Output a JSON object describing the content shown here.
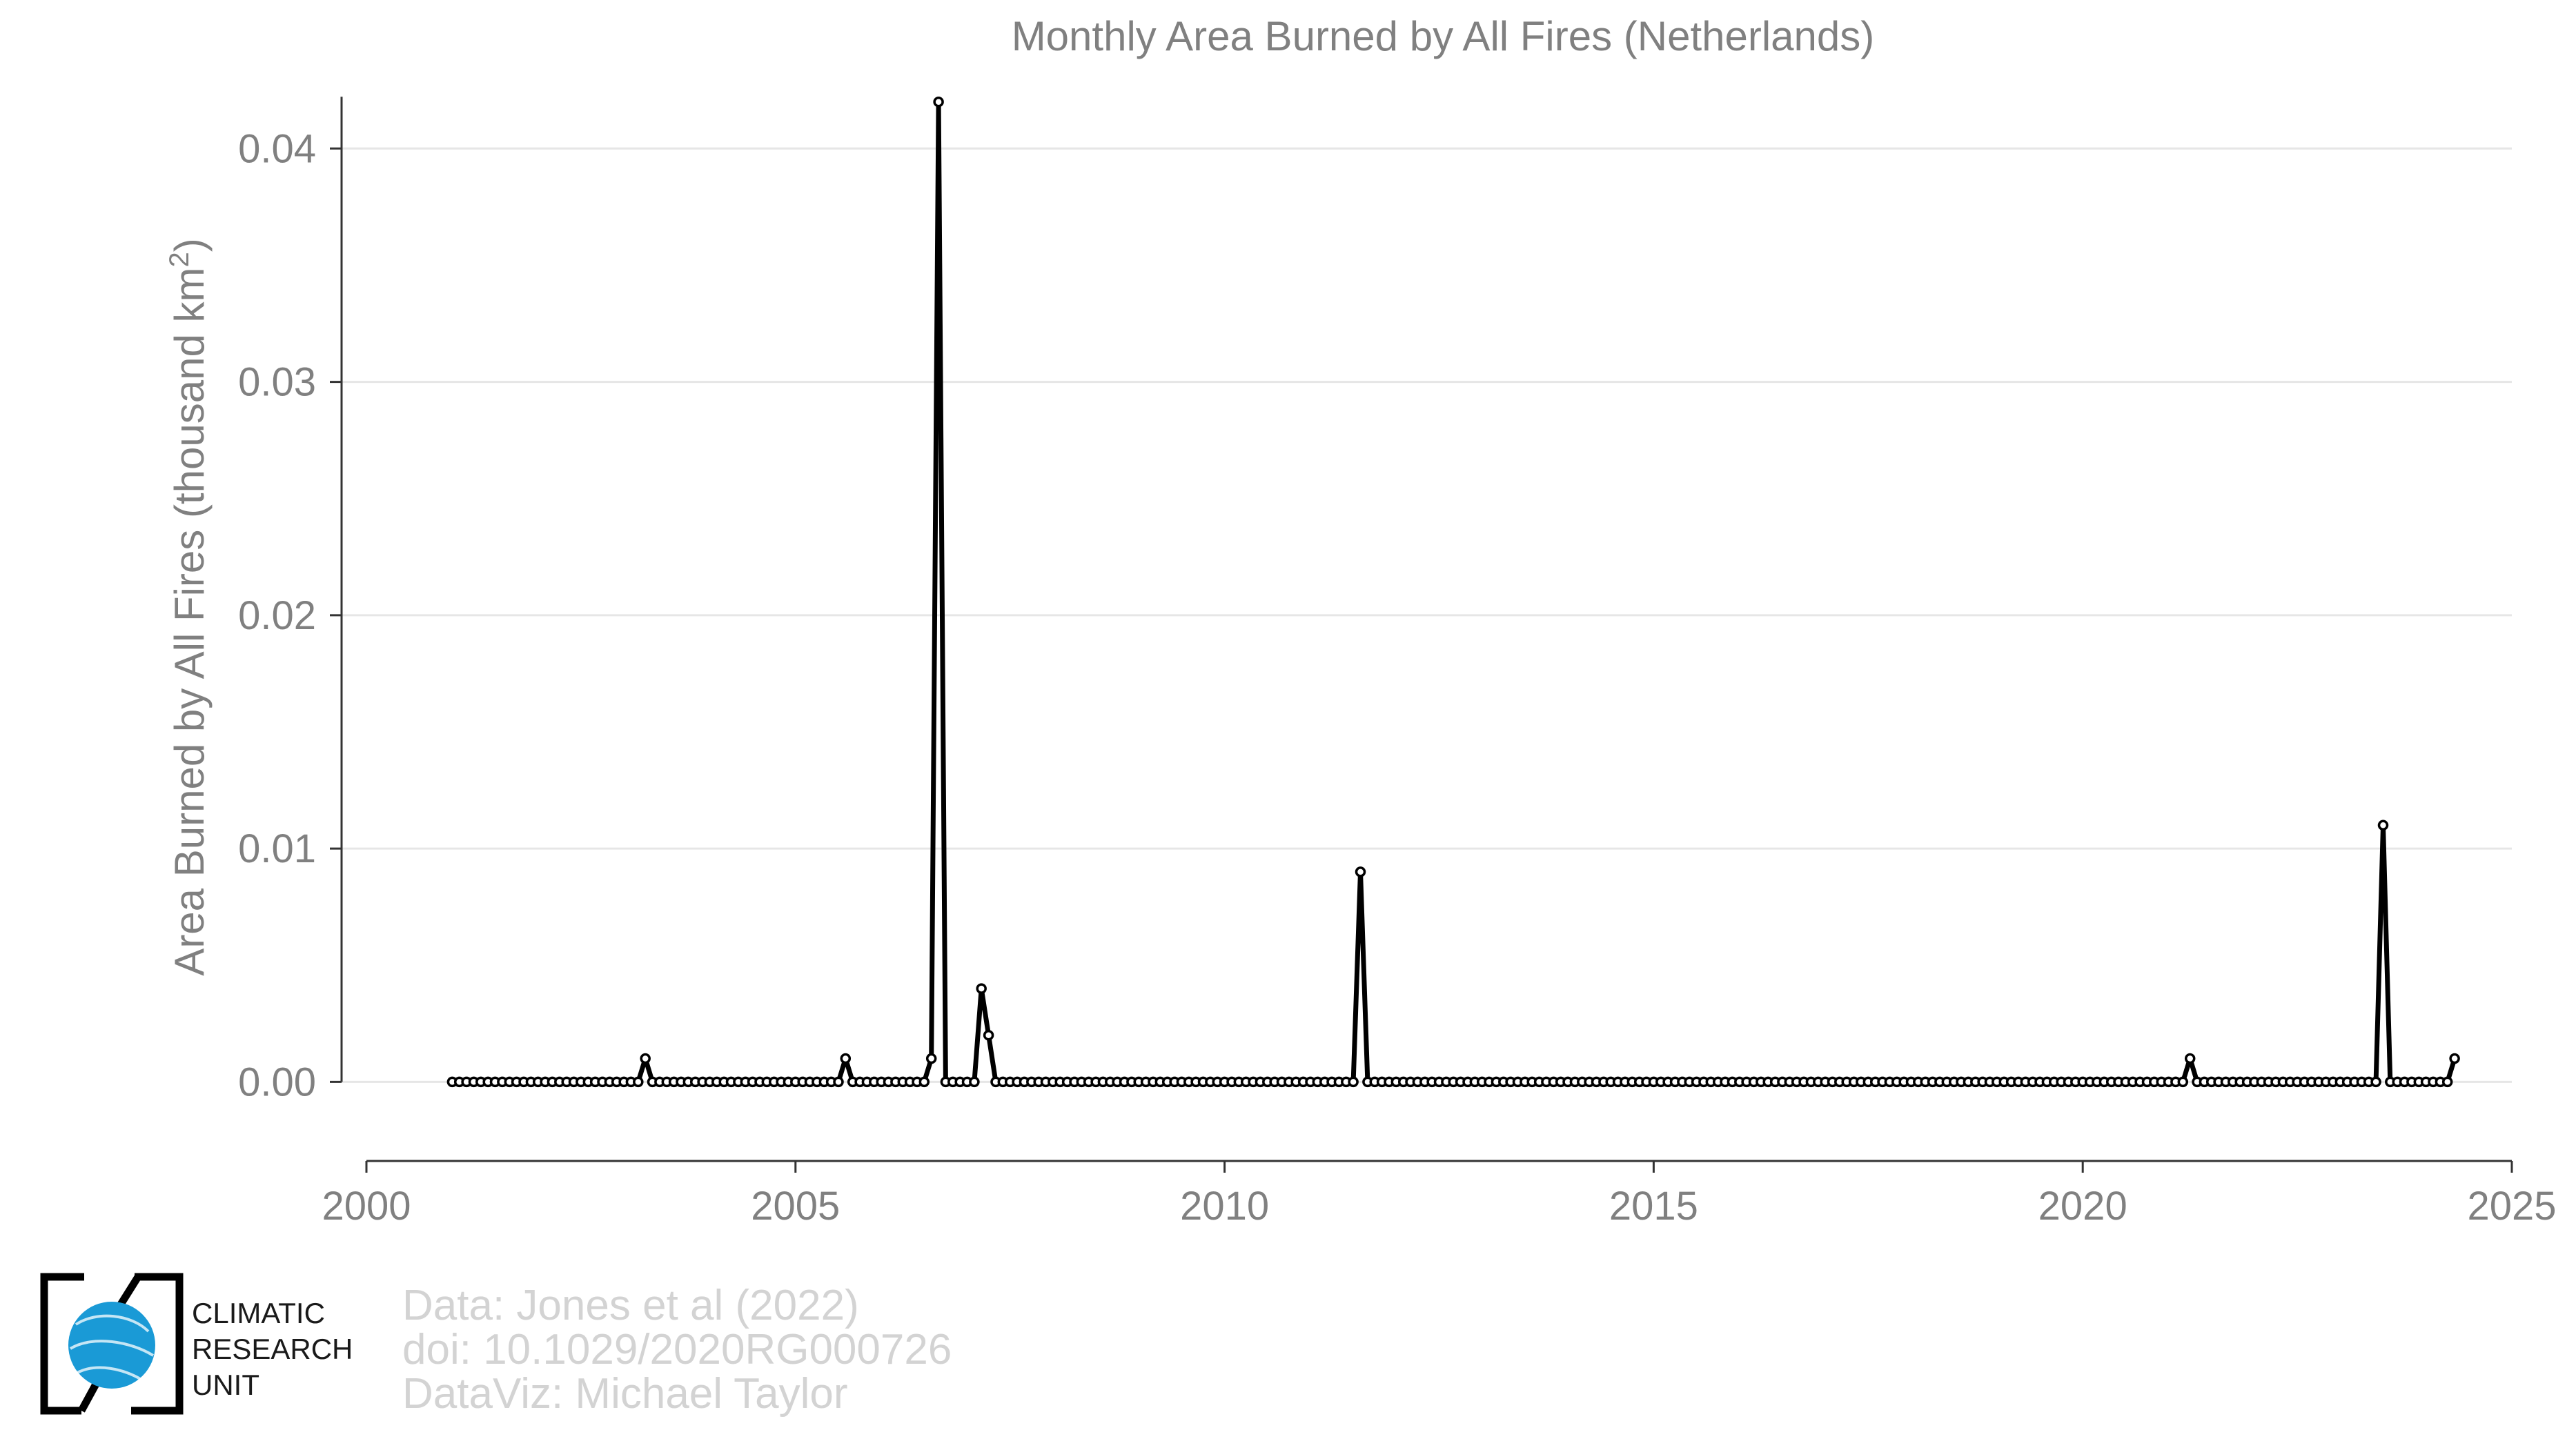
{
  "chart_data": {
    "type": "line",
    "title": "Monthly Area Burned by All Fires (Netherlands)",
    "ylabel": "Area Burned by All Fires (thousand km",
    "ylabel_sup": "2",
    "ylabel_end": ")",
    "xlabel": "",
    "xlim": [
      2000,
      2025
    ],
    "ylim": [
      -0.0033,
      0.044
    ],
    "x_ticks": [
      {
        "value": 2000,
        "label": "2000"
      },
      {
        "value": 2005,
        "label": "2005"
      },
      {
        "value": 2010,
        "label": "2010"
      },
      {
        "value": 2015,
        "label": "2015"
      },
      {
        "value": 2020,
        "label": "2020"
      },
      {
        "value": 2025,
        "label": "2025"
      }
    ],
    "y_ticks": [
      {
        "value": 0.0,
        "label": "0.00"
      },
      {
        "value": 0.01,
        "label": "0.01"
      },
      {
        "value": 0.02,
        "label": "0.02"
      },
      {
        "value": 0.03,
        "label": "0.03"
      },
      {
        "value": 0.04,
        "label": "0.04"
      }
    ],
    "grid": true,
    "series_start": "2001-01",
    "series_end": "2023-05",
    "series": [
      {
        "values": [
          0,
          0,
          0,
          0,
          0,
          0,
          0,
          0,
          0,
          0,
          0,
          0,
          0,
          0,
          0,
          0,
          0,
          0,
          0,
          0,
          0,
          0,
          0,
          0,
          0,
          0,
          0,
          0.001,
          0,
          0,
          0,
          0,
          0,
          0,
          0,
          0,
          0,
          0,
          0,
          0,
          0,
          0,
          0,
          0,
          0,
          0,
          0,
          0,
          0,
          0,
          0,
          0,
          0,
          0,
          0,
          0.001,
          0,
          0,
          0,
          0,
          0,
          0,
          0,
          0,
          0,
          0,
          0,
          0.001,
          0.042,
          0,
          0,
          0,
          0,
          0,
          0.004,
          0.002,
          0,
          0,
          0,
          0,
          0,
          0,
          0,
          0,
          0,
          0,
          0,
          0,
          0,
          0,
          0,
          0,
          0,
          0,
          0,
          0,
          0,
          0,
          0,
          0,
          0,
          0,
          0,
          0,
          0,
          0,
          0,
          0,
          0,
          0,
          0,
          0,
          0,
          0,
          0,
          0,
          0,
          0,
          0,
          0,
          0,
          0,
          0,
          0,
          0,
          0,
          0,
          0.009,
          0,
          0,
          0,
          0,
          0,
          0,
          0,
          0,
          0,
          0,
          0,
          0,
          0,
          0,
          0,
          0,
          0,
          0,
          0,
          0,
          0,
          0,
          0,
          0,
          0,
          0,
          0,
          0,
          0,
          0,
          0,
          0,
          0,
          0,
          0,
          0,
          0,
          0,
          0,
          0,
          0,
          0,
          0,
          0,
          0,
          0,
          0,
          0,
          0,
          0,
          0,
          0,
          0,
          0,
          0,
          0,
          0,
          0,
          0,
          0,
          0,
          0,
          0,
          0,
          0,
          0,
          0,
          0,
          0,
          0,
          0,
          0,
          0,
          0,
          0,
          0,
          0,
          0,
          0,
          0,
          0,
          0,
          0,
          0,
          0,
          0,
          0,
          0,
          0,
          0,
          0,
          0,
          0,
          0,
          0,
          0,
          0,
          0,
          0,
          0,
          0,
          0,
          0,
          0,
          0,
          0,
          0,
          0,
          0,
          0,
          0,
          0,
          0,
          0,
          0,
          0.001,
          0,
          0,
          0,
          0,
          0,
          0,
          0,
          0,
          0,
          0,
          0,
          0,
          0,
          0,
          0,
          0,
          0,
          0,
          0,
          0,
          0,
          0,
          0,
          0,
          0,
          0,
          0.011,
          0,
          0,
          0,
          0,
          0,
          0,
          0,
          0,
          0,
          0.001
        ]
      }
    ],
    "line_color": "#000000",
    "grid_color": "#e6e6e6"
  },
  "credits": {
    "line1": "Data: Jones et al (2022)",
    "line2": "doi: 10.1029/2020RG000726",
    "line3": "DataViz: Michael Taylor"
  },
  "logo": {
    "line1": "CLIMATIC",
    "line2": "RESEARCH",
    "line3": "UNIT",
    "globe_color": "#1a9ad6"
  }
}
